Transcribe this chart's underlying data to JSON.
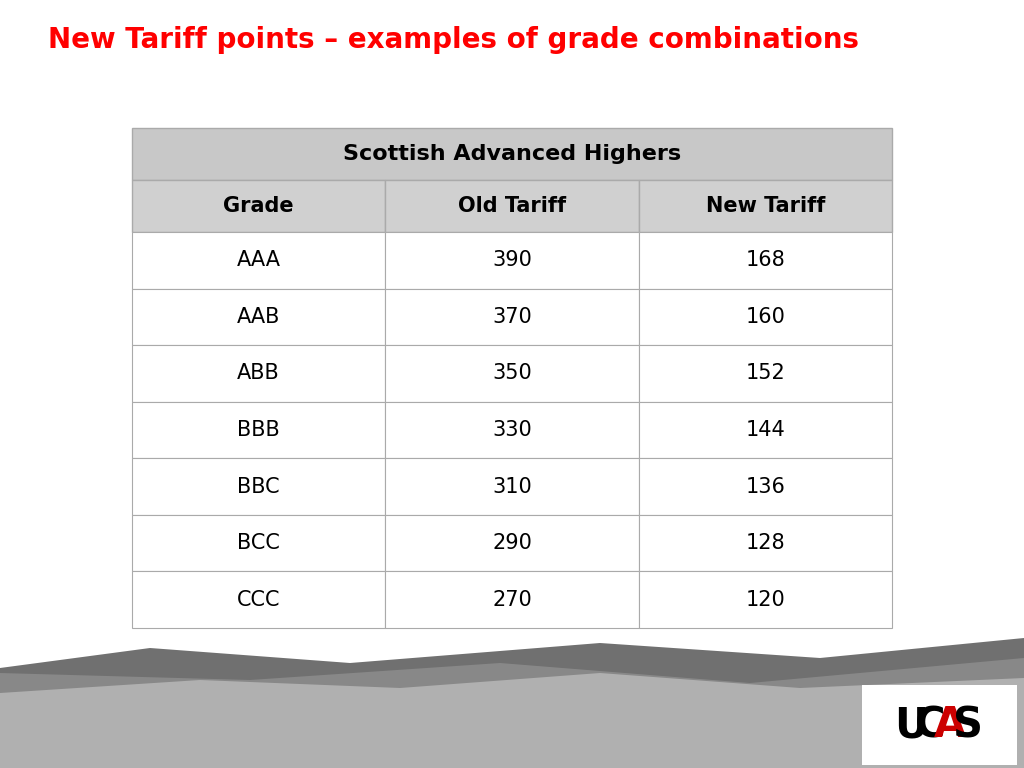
{
  "title": "New Tariff points – examples of grade combinations",
  "title_color": "#ff0000",
  "title_fontsize": 20,
  "title_bold": true,
  "table_title": "Scottish Advanced Highers",
  "col_headers": [
    "Grade",
    "Old Tariff",
    "New Tariff"
  ],
  "rows": [
    [
      "AAA",
      "390",
      "168"
    ],
    [
      "AAB",
      "370",
      "160"
    ],
    [
      "ABB",
      "350",
      "152"
    ],
    [
      "BBB",
      "330",
      "144"
    ],
    [
      "BBC",
      "310",
      "136"
    ],
    [
      "BCC",
      "290",
      "128"
    ],
    [
      "CCC",
      "270",
      "120"
    ]
  ],
  "header_bg": "#c8c8c8",
  "col_header_bg": "#d0d0d0",
  "row_bg": "#ffffff",
  "border_color": "#aaaaaa",
  "text_color": "#000000",
  "bg_color": "#ffffff",
  "footer_dark": "#707070",
  "footer_mid": "#888888",
  "footer_light": "#b0b0b0",
  "ucas_box_color": "#ffffff"
}
